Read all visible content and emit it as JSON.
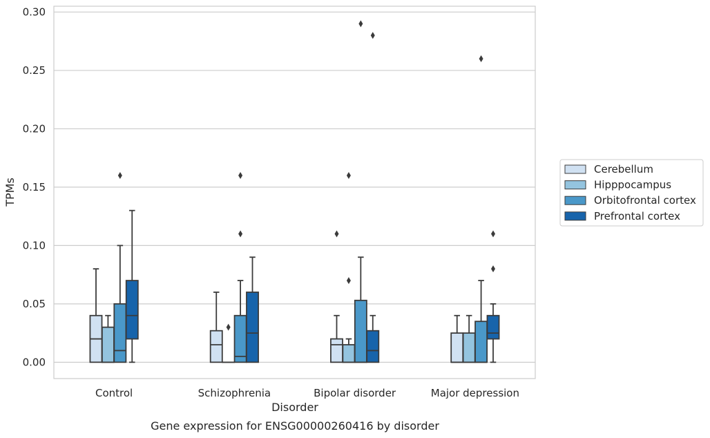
{
  "chart_data": {
    "type": "box",
    "title": "",
    "caption": "Gene expression for ENSG00000260416 by disorder",
    "xlabel": "Disorder",
    "ylabel": "TPMs",
    "ylim": [
      -0.014,
      0.305
    ],
    "yticks": [
      "0.00",
      "0.05",
      "0.10",
      "0.15",
      "0.20",
      "0.25",
      "0.30"
    ],
    "grid": "horizontal",
    "legend_placement": "right",
    "categories": [
      "Control",
      "Schizophrenia",
      "Bipolar disorder",
      "Major depression"
    ],
    "series": [
      {
        "name": "Cerebellum",
        "color": "#d0e1f2",
        "boxes": [
          {
            "low": 0.0,
            "q1": 0.0,
            "median": 0.02,
            "q3": 0.04,
            "high": 0.08,
            "outliers": []
          },
          {
            "low": 0.0,
            "q1": 0.0,
            "median": 0.015,
            "q3": 0.027,
            "high": 0.06,
            "outliers": []
          },
          {
            "low": 0.0,
            "q1": 0.0,
            "median": 0.015,
            "q3": 0.02,
            "high": 0.04,
            "outliers": [
              0.11
            ]
          },
          {
            "low": 0.0,
            "q1": 0.0,
            "median": 0.0,
            "q3": 0.025,
            "high": 0.04,
            "outliers": []
          }
        ]
      },
      {
        "name": "Hipppocampus",
        "color": "#94c4df",
        "boxes": [
          {
            "low": 0.0,
            "q1": 0.0,
            "median": 0.0,
            "q3": 0.03,
            "high": 0.04,
            "outliers": []
          },
          {
            "low": 0.0,
            "q1": 0.0,
            "median": 0.0,
            "q3": 0.0,
            "high": 0.0,
            "outliers": [
              0.03
            ]
          },
          {
            "low": 0.0,
            "q1": 0.0,
            "median": 0.0,
            "q3": 0.015,
            "high": 0.02,
            "outliers": [
              0.07,
              0.16
            ]
          },
          {
            "low": 0.0,
            "q1": 0.0,
            "median": 0.0,
            "q3": 0.025,
            "high": 0.04,
            "outliers": []
          }
        ]
      },
      {
        "name": "Orbitofrontal cortex",
        "color": "#4a98c9",
        "boxes": [
          {
            "low": 0.0,
            "q1": 0.0,
            "median": 0.01,
            "q3": 0.05,
            "high": 0.1,
            "outliers": [
              0.16
            ]
          },
          {
            "low": 0.0,
            "q1": 0.0,
            "median": 0.005,
            "q3": 0.04,
            "high": 0.07,
            "outliers": [
              0.11,
              0.16
            ]
          },
          {
            "low": 0.0,
            "q1": 0.0,
            "median": 0.0,
            "q3": 0.053,
            "high": 0.09,
            "outliers": [
              0.29
            ]
          },
          {
            "low": 0.0,
            "q1": 0.0,
            "median": 0.0,
            "q3": 0.035,
            "high": 0.07,
            "outliers": [
              0.26
            ]
          }
        ]
      },
      {
        "name": "Prefrontal cortex",
        "color": "#1764ab",
        "boxes": [
          {
            "low": 0.0,
            "q1": 0.02,
            "median": 0.04,
            "q3": 0.07,
            "high": 0.13,
            "outliers": []
          },
          {
            "low": 0.0,
            "q1": 0.0,
            "median": 0.025,
            "q3": 0.06,
            "high": 0.09,
            "outliers": []
          },
          {
            "low": 0.0,
            "q1": 0.0,
            "median": 0.01,
            "q3": 0.027,
            "high": 0.04,
            "outliers": [
              0.28
            ]
          },
          {
            "low": 0.0,
            "q1": 0.02,
            "median": 0.025,
            "q3": 0.04,
            "high": 0.05,
            "outliers": [
              0.08,
              0.11
            ]
          }
        ]
      }
    ]
  }
}
